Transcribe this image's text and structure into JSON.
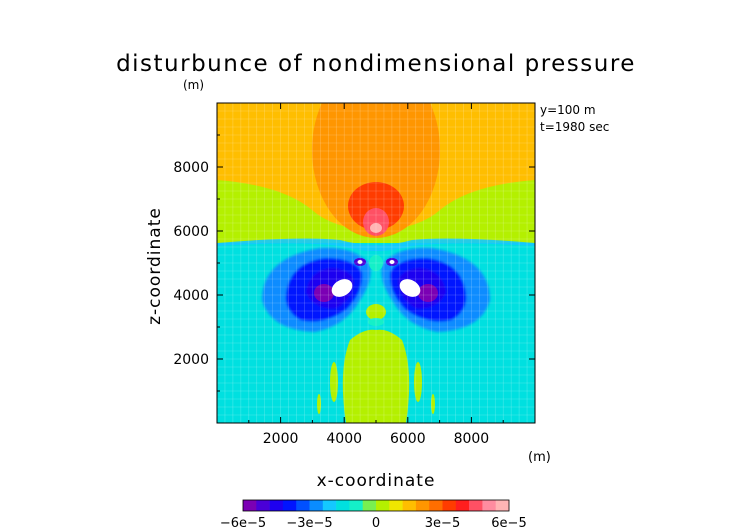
{
  "chart_data": {
    "type": "heatmap",
    "title": "disturbunce of nondimensional pressure",
    "xlabel": "x-coordinate",
    "ylabel": "z-coordinate",
    "x_unit": "(m)",
    "y_unit": "(m)",
    "xlim": [
      0,
      10000
    ],
    "ylim": [
      0,
      10000
    ],
    "xticks": [
      "2000",
      "4000",
      "6000",
      "8000"
    ],
    "xtick_values": [
      2000,
      4000,
      6000,
      8000
    ],
    "yticks": [
      "2000",
      "4000",
      "6000",
      "8000"
    ],
    "ytick_values": [
      2000,
      4000,
      6000,
      8000
    ],
    "annotations": [
      "y=100 m",
      "t=1980 sec"
    ],
    "colorbar": {
      "range": [
        -6e-05,
        6e-05
      ],
      "tick_labels": [
        "−6e−5",
        "−3e−5",
        "0",
        "3e−5",
        "6e−5"
      ],
      "tick_values": [
        -6e-05,
        -3e-05,
        0,
        3e-05,
        6e-05
      ],
      "colors": [
        "#7b00b4",
        "#4a00d8",
        "#1e00f0",
        "#0014ff",
        "#0050ff",
        "#0a8cff",
        "#14c8ff",
        "#00e0e0",
        "#14f0c8",
        "#78f050",
        "#b4f000",
        "#f0e600",
        "#ffbe00",
        "#ff9600",
        "#ff6e00",
        "#ff3c00",
        "#ff1e1e",
        "#ff5064",
        "#ff8ca0",
        "#ffb4b4"
      ]
    },
    "grid": true,
    "regions": [
      {
        "level": 0,
        "desc": "background lower half",
        "x": [
          0,
          10000
        ],
        "z": [
          0,
          5800
        ]
      },
      {
        "level": 2e-05,
        "desc": "upper background",
        "x": [
          0,
          10000
        ],
        "z": [
          5800,
          10000
        ]
      },
      {
        "level": 1e-05,
        "desc": "wing band",
        "center": [
          5000,
          6200
        ]
      },
      {
        "level": 3e-05,
        "desc": "central upper plume",
        "center": [
          5000,
          8000
        ]
      },
      {
        "level": 5e-05,
        "desc": "upper maximum",
        "center": [
          5000,
          6500
        ]
      },
      {
        "level": -4e-05,
        "desc": "left vortex",
        "center": [
          3600,
          4300
        ]
      },
      {
        "level": -4e-05,
        "desc": "right vortex",
        "center": [
          6400,
          4300
        ]
      },
      {
        "level": 1e-05,
        "desc": "lower column",
        "center": [
          5000,
          2000
        ]
      }
    ]
  }
}
